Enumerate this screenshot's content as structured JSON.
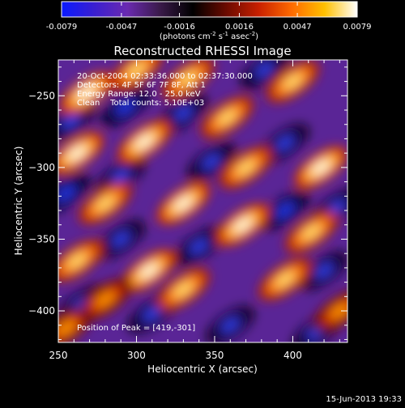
{
  "colorbar": {
    "ticks": [
      "-0.0079",
      "-0.0047",
      "-0.0016",
      "0.0016",
      "0.0047",
      "0.0079"
    ],
    "tick_values": [
      -0.0079,
      -0.0047,
      -0.0016,
      0.0016,
      0.0047,
      0.0079
    ],
    "range": [
      -0.0079,
      0.0079
    ],
    "unit_pre": "(photons cm",
    "unit_exp1": "-2",
    "unit_mid1": " s",
    "unit_exp2": "-1",
    "unit_mid2": " asec",
    "unit_exp3": "-2",
    "unit_post": ")",
    "colormap": [
      "#0a1aff",
      "#3a1fd0",
      "#6a2ab0",
      "#3a1a4a",
      "#000000",
      "#6a0a00",
      "#c82000",
      "#ff6a00",
      "#ffc000",
      "#ffffff"
    ]
  },
  "chart_data": {
    "type": "heatmap",
    "title": "Reconstructed RHESSI Image",
    "xlabel": "Heliocentric X (arcsec)",
    "ylabel": "Heliocentric Y (arcsec)",
    "xlim": [
      250,
      435
    ],
    "ylim": [
      -422,
      -225
    ],
    "x_ticks": [
      250,
      300,
      350,
      400
    ],
    "y_ticks": [
      -250,
      -300,
      -350,
      -400
    ],
    "x_tick_labels": [
      "250",
      "300",
      "350",
      "400"
    ],
    "y_tick_labels": [
      "−250",
      "−300",
      "−350",
      "−400"
    ],
    "peak": [
      419,
      -301
    ],
    "stripe_angle_deg": -35,
    "bright_blobs": [
      {
        "x": 268,
        "y": -248,
        "v": 0.95
      },
      {
        "x": 300,
        "y": -232,
        "v": 0.8
      },
      {
        "x": 333,
        "y": -238,
        "v": 0.85
      },
      {
        "x": 262,
        "y": -290,
        "v": 0.9
      },
      {
        "x": 305,
        "y": -282,
        "v": 1.0
      },
      {
        "x": 358,
        "y": -265,
        "v": 0.8
      },
      {
        "x": 400,
        "y": -240,
        "v": 0.85
      },
      {
        "x": 280,
        "y": -325,
        "v": 0.75
      },
      {
        "x": 330,
        "y": -325,
        "v": 1.0
      },
      {
        "x": 370,
        "y": -300,
        "v": 0.75
      },
      {
        "x": 418,
        "y": -300,
        "v": 1.0
      },
      {
        "x": 262,
        "y": -365,
        "v": 0.8
      },
      {
        "x": 308,
        "y": -372,
        "v": 0.9
      },
      {
        "x": 368,
        "y": -340,
        "v": 0.9
      },
      {
        "x": 412,
        "y": -345,
        "v": 0.75
      },
      {
        "x": 255,
        "y": -412,
        "v": 0.7
      },
      {
        "x": 330,
        "y": -385,
        "v": 0.85
      },
      {
        "x": 395,
        "y": -378,
        "v": 0.8
      },
      {
        "x": 430,
        "y": -400,
        "v": 0.65
      },
      {
        "x": 280,
        "y": -392,
        "v": 0.65
      }
    ],
    "dark_blobs": [
      {
        "x": 258,
        "y": -268,
        "v": -0.8
      },
      {
        "x": 293,
        "y": -258,
        "v": -0.95
      },
      {
        "x": 330,
        "y": -262,
        "v": -0.8
      },
      {
        "x": 382,
        "y": -232,
        "v": -0.75
      },
      {
        "x": 255,
        "y": -318,
        "v": -0.9
      },
      {
        "x": 290,
        "y": -306,
        "v": -0.75
      },
      {
        "x": 348,
        "y": -296,
        "v": -0.8
      },
      {
        "x": 395,
        "y": -283,
        "v": -0.75
      },
      {
        "x": 290,
        "y": -350,
        "v": -0.85
      },
      {
        "x": 340,
        "y": -355,
        "v": -0.8
      },
      {
        "x": 395,
        "y": -330,
        "v": -1.0
      },
      {
        "x": 428,
        "y": -328,
        "v": -0.8
      },
      {
        "x": 265,
        "y": -395,
        "v": -0.7
      },
      {
        "x": 310,
        "y": -402,
        "v": -0.8
      },
      {
        "x": 360,
        "y": -410,
        "v": -0.75
      },
      {
        "x": 420,
        "y": -372,
        "v": -0.85
      },
      {
        "x": 415,
        "y": -415,
        "v": -0.7
      }
    ]
  },
  "annotations": {
    "line1": "20-Oct-2004 02:33:36.000 to 02:37:30.000",
    "line2": "Detectors: 4F 5F 6F 7F 8F, Att 1",
    "line3": "Energy Range: 12.0 - 25.0 keV",
    "line4": "Clean    Total counts: 5.10E+03",
    "peak_label": "Position of Peak = [419,-301]"
  },
  "footer": {
    "timestamp": "15-Jun-2013 19:33"
  }
}
